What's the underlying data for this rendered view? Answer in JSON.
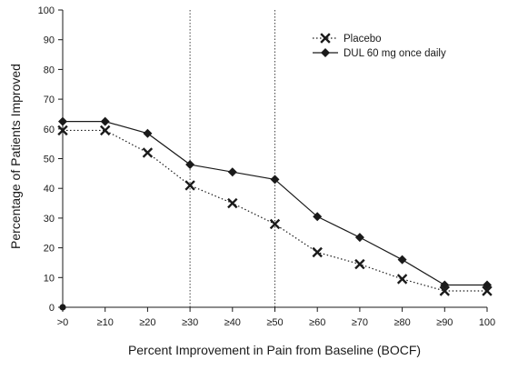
{
  "chart_data": {
    "type": "line",
    "xlabel": "Percent Improvement in Pain from Baseline (BOCF)",
    "ylabel": "Percentage of Patients Improved",
    "categories": [
      ">0",
      "≥10",
      "≥20",
      "≥30",
      "≥40",
      "≥50",
      "≥60",
      "≥70",
      "≥80",
      "≥90",
      "100"
    ],
    "ylim": [
      0,
      100
    ],
    "yticks": [
      0,
      10,
      20,
      30,
      40,
      50,
      60,
      70,
      80,
      90,
      100
    ],
    "reference_lines_at": [
      "≥30",
      "≥50"
    ],
    "legend_position": "top-right",
    "grid": false,
    "series": [
      {
        "name": "Placebo",
        "marker": "x",
        "line_style": "dotted",
        "color": "#1a1a1a",
        "values": [
          59.5,
          59.5,
          52,
          41,
          35,
          28,
          18.5,
          14.5,
          9.5,
          5.5,
          5.5
        ]
      },
      {
        "name": "DUL 60 mg once daily",
        "marker": "diamond",
        "line_style": "solid",
        "color": "#1a1a1a",
        "values": [
          62.5,
          62.5,
          58.5,
          48,
          45.5,
          43,
          30.5,
          23.5,
          16,
          7.5,
          7.5
        ]
      }
    ],
    "extra_points": [
      {
        "x": ">0",
        "y": 0,
        "marker": "dot"
      }
    ]
  }
}
